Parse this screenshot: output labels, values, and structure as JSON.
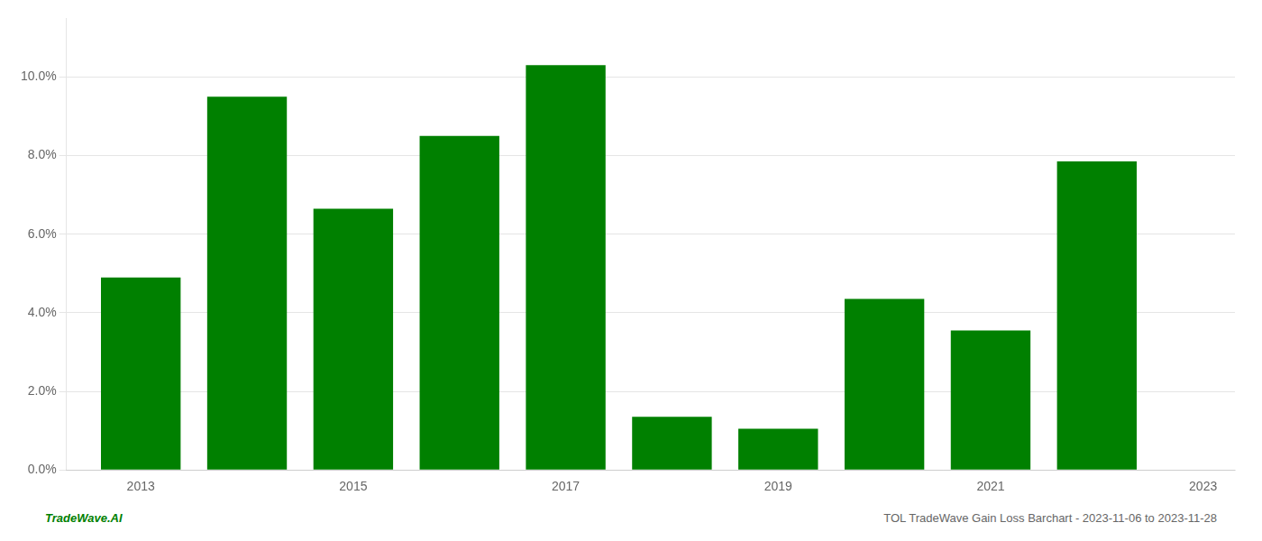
{
  "chart_data": {
    "type": "bar",
    "x": [
      2013,
      2014,
      2015,
      2016,
      2017,
      2018,
      2019,
      2020,
      2021,
      2022
    ],
    "values": [
      0.049,
      0.095,
      0.0665,
      0.085,
      0.103,
      0.0135,
      0.0105,
      0.0435,
      0.0355,
      0.0785
    ],
    "color": "#008000",
    "xlim": [
      2012.3,
      2023.3
    ],
    "xticks": [
      2013,
      2015,
      2017,
      2019,
      2021,
      2023
    ],
    "ylim": [
      0,
      0.115
    ],
    "yticks": [
      {
        "value": 0.0,
        "label": "0.0%"
      },
      {
        "value": 0.02,
        "label": "2.0%"
      },
      {
        "value": 0.04,
        "label": "4.0%"
      },
      {
        "value": 0.06,
        "label": "6.0%"
      },
      {
        "value": 0.08,
        "label": "8.0%"
      },
      {
        "value": 0.1,
        "label": "10.0%"
      }
    ],
    "grid": true,
    "annotations": [
      {
        "text": "TradeWave.AI",
        "color": "#008000"
      },
      {
        "text": "TOL TradeWave Gain Loss Barchart - 2023-11-06 to 2023-11-28",
        "color": "#666666"
      }
    ]
  }
}
